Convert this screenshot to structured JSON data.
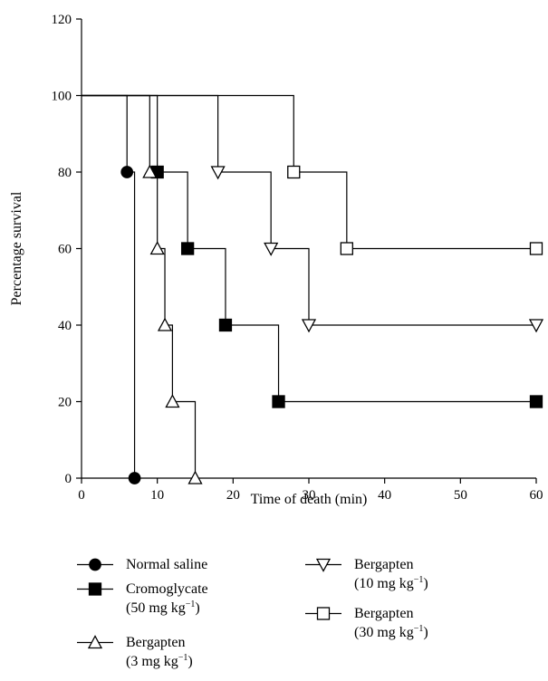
{
  "chart_data": {
    "type": "line",
    "step": true,
    "title": "",
    "xlabel": "Time of death (min)",
    "ylabel": "Percentage survival",
    "xlim": [
      0,
      60
    ],
    "ylim": [
      0,
      120
    ],
    "x_ticks": [
      0,
      10,
      20,
      30,
      40,
      50,
      60
    ],
    "y_ticks": [
      0,
      20,
      40,
      60,
      80,
      100,
      120
    ],
    "grid": false,
    "legend_position": "bottom",
    "series": [
      {
        "key": "normal-saline",
        "name_line1": "Normal saline",
        "name_line2": "",
        "marker": "filled-circle",
        "points": [
          [
            6,
            80
          ],
          [
            7,
            0
          ]
        ]
      },
      {
        "key": "cromoglycate-50",
        "name_line1": "Cromoglycate",
        "name_line2": "(50 mg kg",
        "name_sup": "−1",
        "marker": "filled-square",
        "points": [
          [
            10,
            80
          ],
          [
            14,
            60
          ],
          [
            19,
            40
          ],
          [
            26,
            20
          ],
          [
            60,
            20
          ]
        ]
      },
      {
        "key": "bergapten-3",
        "name_line1": "Bergapten",
        "name_line2": "(3 mg kg",
        "name_sup": "−1",
        "marker": "open-triangle-up",
        "points": [
          [
            9,
            80
          ],
          [
            10,
            60
          ],
          [
            11,
            40
          ],
          [
            12,
            20
          ],
          [
            15,
            0
          ]
        ]
      },
      {
        "key": "bergapten-10",
        "name_line1": "Bergapten",
        "name_line2": "(10 mg kg",
        "name_sup": "−1",
        "marker": "open-triangle-down",
        "points": [
          [
            18,
            80
          ],
          [
            25,
            60
          ],
          [
            30,
            40
          ],
          [
            60,
            40
          ]
        ]
      },
      {
        "key": "bergapten-30",
        "name_line1": "Bergapten",
        "name_line2": "(30 mg kg",
        "name_sup": "−1",
        "marker": "open-square",
        "points": [
          [
            28,
            80
          ],
          [
            35,
            60
          ],
          [
            60,
            60
          ]
        ]
      }
    ],
    "legend": {
      "left": [
        "normal-saline",
        "cromoglycate-50",
        "bergapten-3"
      ],
      "right": [
        "bergapten-10",
        "bergapten-30"
      ],
      "close_paren": ")"
    }
  }
}
